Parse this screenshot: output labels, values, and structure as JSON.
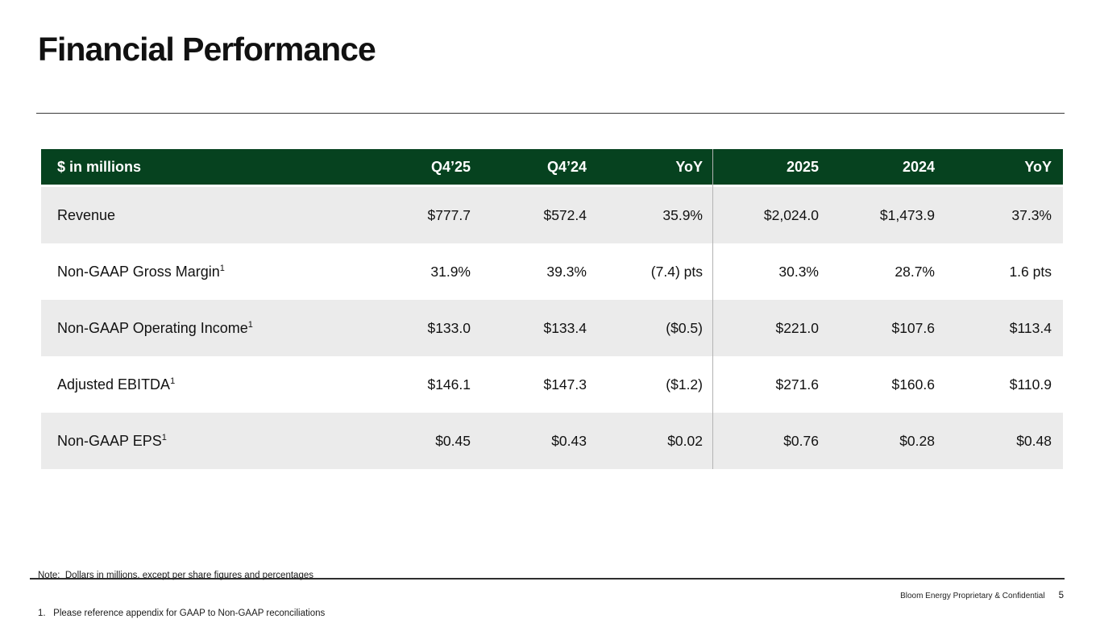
{
  "slide": {
    "title": "Financial Performance",
    "footer_text": "Bloom Energy Proprietary & Confidential",
    "page_number": "5",
    "notes": [
      "Note:  Dollars in millions, except per share figures and percentages",
      "1.   Please reference appendix for GAAP to Non-GAAP reconciliations"
    ]
  },
  "colors": {
    "header_green": "#06421f",
    "row_gray": "#ebebeb",
    "divider_gray": "#b3b3b3",
    "text_dark": "#121212"
  },
  "table": {
    "header": {
      "label": "$ in millions",
      "columns": [
        "Q4’25",
        "Q4’24",
        "YoY",
        "2025",
        "2024",
        "YoY"
      ]
    },
    "rows": [
      {
        "label": "Revenue",
        "superscript": "",
        "values": [
          "$777.7",
          "$572.4",
          "35.9%",
          "$2,024.0",
          "$1,473.9",
          "37.3%"
        ]
      },
      {
        "label": "Non-GAAP Gross Margin",
        "superscript": "1",
        "values": [
          "31.9%",
          "39.3%",
          "(7.4) pts",
          "30.3%",
          "28.7%",
          "1.6 pts"
        ]
      },
      {
        "label": "Non-GAAP Operating Income",
        "superscript": "1",
        "values": [
          "$133.0",
          "$133.4",
          "($0.5)",
          "$221.0",
          "$107.6",
          "$113.4"
        ]
      },
      {
        "label": "Adjusted EBITDA",
        "superscript": "1",
        "values": [
          "$146.1",
          "$147.3",
          "($1.2)",
          "$271.6",
          "$160.6",
          "$110.9"
        ]
      },
      {
        "label": "Non-GAAP EPS",
        "superscript": "1",
        "values": [
          "$0.45",
          "$0.43",
          "$0.02",
          "$0.76",
          "$0.28",
          "$0.48"
        ]
      }
    ]
  }
}
